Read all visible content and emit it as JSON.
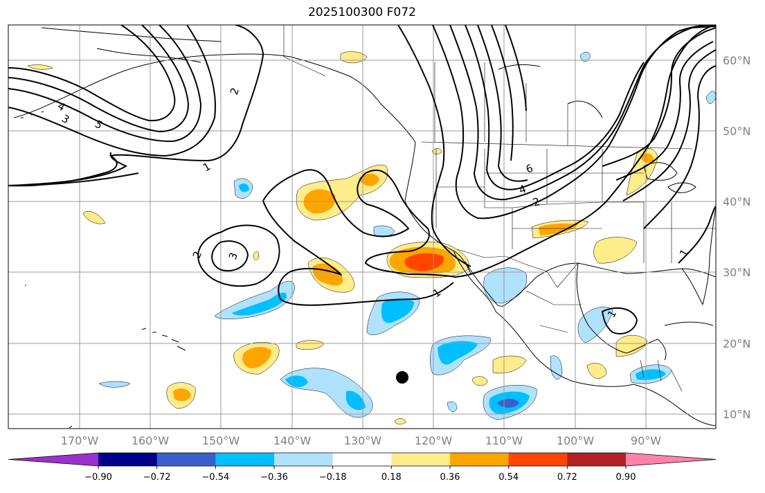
{
  "title": "2025100300 F072",
  "lat_labels": [
    "60°N",
    "50°N",
    "40°N",
    "30°N",
    "20°N",
    "10°N"
  ],
  "lon_labels": [
    "170°W",
    "160°W",
    "150°W",
    "140°W",
    "130°W",
    "120°W",
    "110°W",
    "100°W",
    "90°W"
  ],
  "colorbar": {
    "ticks": [
      "−0.90",
      "−0.72",
      "−0.54",
      "−0.36",
      "−0.18",
      "0.18",
      "0.36",
      "0.54",
      "0.72",
      "0.90"
    ],
    "colors": [
      "#9932cc",
      "#00008b",
      "#3a5fcd",
      "#00bfff",
      "#b0e2ff",
      "#ffffff",
      "#ffec8b",
      "#ffa500",
      "#ff4500",
      "#b22222",
      "#ff82ab"
    ]
  },
  "contour_labels": [
    "4",
    "3",
    "5",
    "2",
    "1",
    "2",
    "3",
    "6",
    "4",
    "2",
    "1",
    "1",
    "1"
  ],
  "marker": "storm-center-dot"
}
